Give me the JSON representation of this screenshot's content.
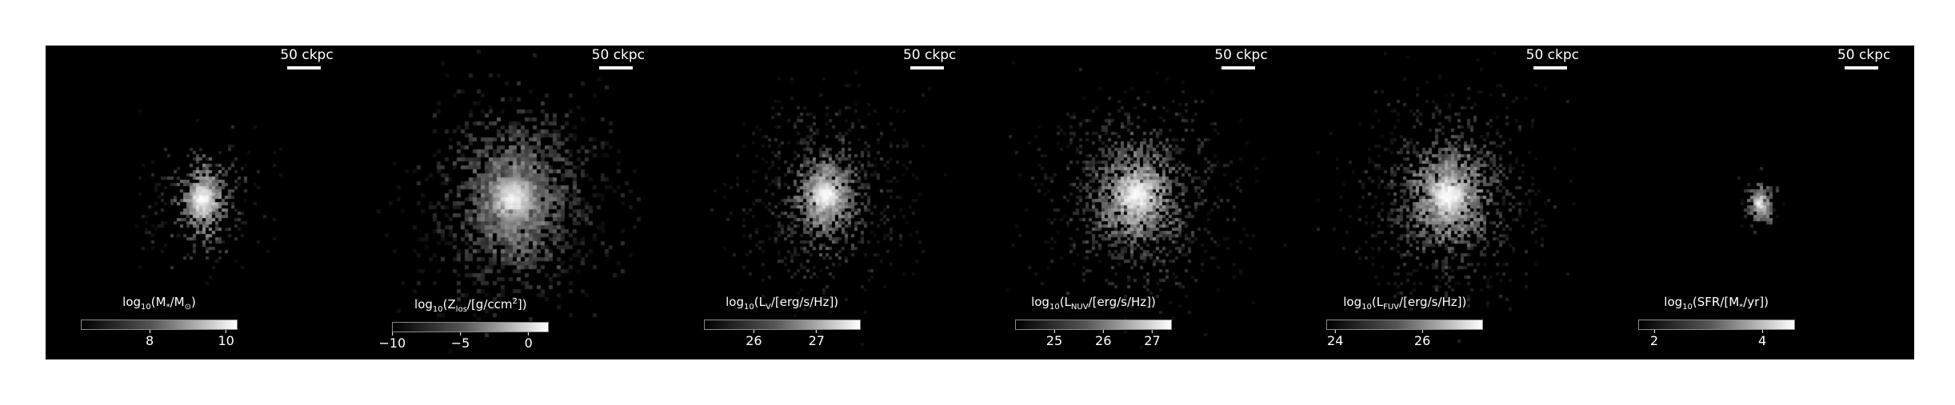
{
  "scale_bar_label": "50 ckpc",
  "panels": [
    {
      "id": "stellar-mass",
      "colorbar": {
        "prefix": "log",
        "sub": "10",
        "main": "(M",
        "main_sub": "*",
        "suffix": "/M",
        "suffix_sub": "⊙",
        "end": ")",
        "ticks": [
          {
            "label": "8",
            "value": 8
          },
          {
            "label": "10",
            "value": 10
          }
        ],
        "range": [
          6.2,
          10.3
        ]
      }
    },
    {
      "id": "metallicity",
      "colorbar": {
        "prefix": "log",
        "sub": "10",
        "main": "(Z",
        "main_sub": "los",
        "suffix": "/[g/ccm",
        "suffix_sup": "2",
        "end": "])",
        "ticks": [
          {
            "label": "−10",
            "value": -10
          },
          {
            "label": "−5",
            "value": -5
          },
          {
            "label": "0",
            "value": 0
          }
        ],
        "range": [
          -10,
          1.5
        ]
      }
    },
    {
      "id": "v-band",
      "colorbar": {
        "prefix": "log",
        "sub": "10",
        "main": "(L",
        "main_sub": "V",
        "suffix": "/[erg/s/Hz])",
        "end": "",
        "ticks": [
          {
            "label": "26",
            "value": 26
          },
          {
            "label": "27",
            "value": 27
          }
        ],
        "range": [
          25.2,
          27.7
        ]
      }
    },
    {
      "id": "nuv",
      "colorbar": {
        "prefix": "log",
        "sub": "10",
        "main": "(L",
        "main_sub": "NUV",
        "suffix": "/[erg/s/Hz])",
        "end": "",
        "ticks": [
          {
            "label": "25",
            "value": 25
          },
          {
            "label": "26",
            "value": 26
          },
          {
            "label": "27",
            "value": 27
          }
        ],
        "range": [
          24.2,
          27.4
        ]
      }
    },
    {
      "id": "fuv",
      "colorbar": {
        "prefix": "log",
        "sub": "10",
        "main": "(L",
        "main_sub": "FUV",
        "suffix": "/[erg/s/Hz])",
        "end": "",
        "ticks": [
          {
            "label": "24",
            "value": 24
          },
          {
            "label": "26",
            "value": 26
          }
        ],
        "range": [
          23.8,
          27.4
        ]
      }
    },
    {
      "id": "sfr",
      "colorbar": {
        "prefix": "log",
        "sub": "10",
        "main": "(SFR/[M",
        "main_sub": "*",
        "suffix": "/yr])",
        "end": "",
        "ticks": [
          {
            "label": "2",
            "value": 2
          },
          {
            "label": "4",
            "value": 4
          }
        ],
        "range": [
          1.7,
          4.6
        ]
      }
    }
  ],
  "colors": {
    "background": "#000000",
    "foreground": "#ffffff",
    "page": "#ffffff"
  }
}
